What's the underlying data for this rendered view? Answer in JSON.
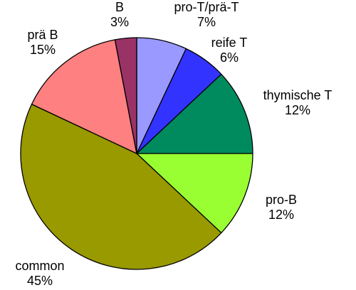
{
  "chart_data": {
    "type": "pie",
    "slices": [
      {
        "label": "pro-T/prä-T",
        "percent_label": "7%",
        "value": 7,
        "color": "#9999ff"
      },
      {
        "label": "reife T",
        "percent_label": "6%",
        "value": 6,
        "color": "#3333ff"
      },
      {
        "label": "thymische T",
        "percent_label": "12%",
        "value": 12,
        "color": "#008b5e"
      },
      {
        "label": "pro-B",
        "percent_label": "12%",
        "value": 12,
        "color": "#99ff33"
      },
      {
        "label": "common",
        "percent_label": "45%",
        "value": 45,
        "color": "#999900"
      },
      {
        "label": "prä B",
        "percent_label": "15%",
        "value": 15,
        "color": "#ff8080"
      },
      {
        "label": "B",
        "percent_label": "3%",
        "value": 3,
        "color": "#993366"
      }
    ],
    "start_angle": "top (12 o'clock)",
    "direction": "clockwise",
    "legend": "none (labels beside slices)"
  }
}
